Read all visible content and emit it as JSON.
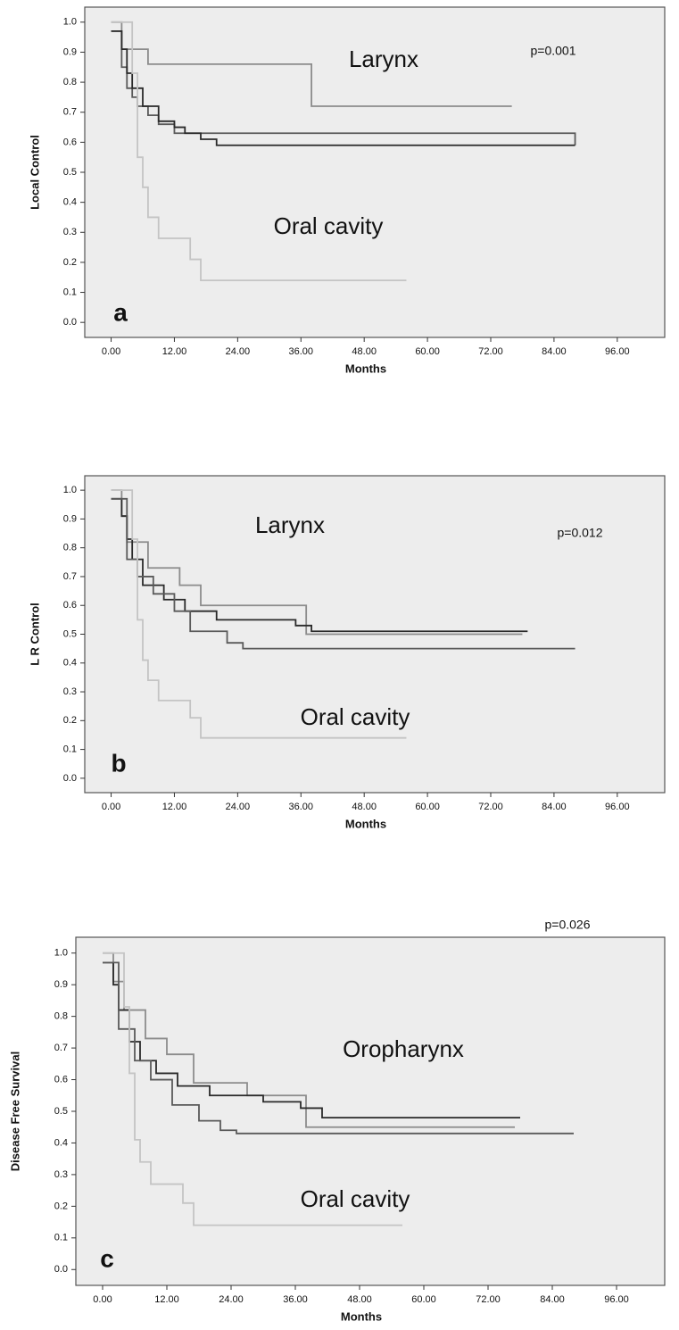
{
  "chart_data": [
    {
      "type": "step",
      "ylabel": "Local Control",
      "xlabel": "Months",
      "panel": "a",
      "pvalue": "p=0.001",
      "annotations": [
        "Larynx",
        "Oral cavity"
      ],
      "xlim": [
        -5,
        105
      ],
      "ylim": [
        -0.05,
        1.05
      ],
      "xticks": [
        {
          "value": 0,
          "label": "0.00"
        },
        {
          "value": 12,
          "label": "12.00"
        },
        {
          "value": 24,
          "label": "24.00"
        },
        {
          "value": 36,
          "label": "36.00"
        },
        {
          "value": 48,
          "label": "48.00"
        },
        {
          "value": 60,
          "label": "60.00"
        },
        {
          "value": 72,
          "label": "72.00"
        },
        {
          "value": 84,
          "label": "84.00"
        },
        {
          "value": 96,
          "label": "96.00"
        }
      ],
      "yticks": [
        {
          "value": 0,
          "label": "0.0"
        },
        {
          "value": 0.1,
          "label": "0.1"
        },
        {
          "value": 0.2,
          "label": "0.2"
        },
        {
          "value": 0.3,
          "label": "0.3"
        },
        {
          "value": 0.4,
          "label": "0.4"
        },
        {
          "value": 0.5,
          "label": "0.5"
        },
        {
          "value": 0.6,
          "label": "0.6"
        },
        {
          "value": 0.7,
          "label": "0.7"
        },
        {
          "value": 0.8,
          "label": "0.8"
        },
        {
          "value": 0.9,
          "label": "0.9"
        },
        {
          "value": 1,
          "label": "1.0"
        }
      ],
      "series": [
        {
          "color": "#8c8c8c",
          "x": [
            0,
            2,
            7,
            38,
            76
          ],
          "values": [
            1,
            0.91,
            0.86,
            0.72,
            0.72
          ]
        },
        {
          "color": "#5a5a5a",
          "x": [
            0,
            2,
            3,
            4,
            5,
            7,
            9,
            12,
            88
          ],
          "values": [
            0.97,
            0.85,
            0.78,
            0.75,
            0.72,
            0.69,
            0.66,
            0.63,
            0.59
          ]
        },
        {
          "color": "#2a2a2a",
          "x": [
            0,
            2,
            3,
            4,
            6,
            9,
            12,
            14,
            17,
            20,
            88
          ],
          "values": [
            0.97,
            0.91,
            0.83,
            0.78,
            0.72,
            0.67,
            0.65,
            0.63,
            0.61,
            0.59,
            0.59
          ]
        },
        {
          "color": "#c4c4c4",
          "x": [
            0,
            4,
            5,
            6,
            7,
            9,
            15,
            17,
            56
          ],
          "values": [
            1,
            0.83,
            0.55,
            0.45,
            0.35,
            0.28,
            0.21,
            0.14,
            0.14
          ]
        }
      ]
    },
    {
      "type": "step",
      "ylabel": "L R Control",
      "xlabel": "Months",
      "panel": "b",
      "pvalue": "p=0.012",
      "annotations": [
        "Larynx",
        "Oral cavity"
      ],
      "xlim": [
        -5,
        105
      ],
      "ylim": [
        -0.05,
        1.05
      ],
      "xticks": [
        {
          "value": 0,
          "label": "0.00"
        },
        {
          "value": 12,
          "label": "12.00"
        },
        {
          "value": 24,
          "label": "24.00"
        },
        {
          "value": 36,
          "label": "36.00"
        },
        {
          "value": 48,
          "label": "48.00"
        },
        {
          "value": 60,
          "label": "60.00"
        },
        {
          "value": 72,
          "label": "72.00"
        },
        {
          "value": 84,
          "label": "84.00"
        },
        {
          "value": 96,
          "label": "96.00"
        }
      ],
      "yticks": [
        {
          "value": 0,
          "label": "0.0"
        },
        {
          "value": 0.1,
          "label": "0.1"
        },
        {
          "value": 0.2,
          "label": "0.2"
        },
        {
          "value": 0.3,
          "label": "0.3"
        },
        {
          "value": 0.4,
          "label": "0.4"
        },
        {
          "value": 0.5,
          "label": "0.5"
        },
        {
          "value": 0.6,
          "label": "0.6"
        },
        {
          "value": 0.7,
          "label": "0.7"
        },
        {
          "value": 0.8,
          "label": "0.8"
        },
        {
          "value": 0.9,
          "label": "0.9"
        },
        {
          "value": 1,
          "label": "1.0"
        }
      ],
      "series": [
        {
          "color": "#8c8c8c",
          "x": [
            0,
            2,
            3,
            7,
            13,
            17,
            27,
            37,
            78
          ],
          "values": [
            1,
            0.91,
            0.82,
            0.73,
            0.67,
            0.6,
            0.6,
            0.5,
            0.5
          ]
        },
        {
          "color": "#2a2a2a",
          "x": [
            0,
            2,
            3,
            4,
            6,
            10,
            14,
            20,
            35,
            38,
            79
          ],
          "values": [
            0.97,
            0.91,
            0.83,
            0.76,
            0.67,
            0.62,
            0.58,
            0.55,
            0.53,
            0.51,
            0.51
          ]
        },
        {
          "color": "#5a5a5a",
          "x": [
            0,
            3,
            5,
            8,
            12,
            15,
            22,
            25,
            88
          ],
          "values": [
            0.97,
            0.76,
            0.7,
            0.64,
            0.58,
            0.51,
            0.47,
            0.45,
            0.45
          ]
        },
        {
          "color": "#c4c4c4",
          "x": [
            0,
            4,
            5,
            6,
            7,
            9,
            15,
            17,
            56
          ],
          "values": [
            1,
            0.83,
            0.55,
            0.41,
            0.34,
            0.27,
            0.21,
            0.14,
            0.14
          ]
        }
      ]
    },
    {
      "type": "step",
      "ylabel": "Disease Free Survival",
      "xlabel": "Months",
      "panel": "c",
      "pvalue": "p=0.026",
      "annotations": [
        "Oropharynx",
        "Oral cavity"
      ],
      "xlim": [
        -5,
        105
      ],
      "ylim": [
        -0.05,
        1.05
      ],
      "xticks": [
        {
          "value": 0,
          "label": "0.00"
        },
        {
          "value": 12,
          "label": "12.00"
        },
        {
          "value": 24,
          "label": "24.00"
        },
        {
          "value": 36,
          "label": "36.00"
        },
        {
          "value": 48,
          "label": "48.00"
        },
        {
          "value": 60,
          "label": "60.00"
        },
        {
          "value": 72,
          "label": "72.00"
        },
        {
          "value": 84,
          "label": "84.00"
        },
        {
          "value": 96,
          "label": "96.00"
        }
      ],
      "yticks": [
        {
          "value": 0,
          "label": "0.0"
        },
        {
          "value": 0.1,
          "label": "0.1"
        },
        {
          "value": 0.2,
          "label": "0.2"
        },
        {
          "value": 0.3,
          "label": "0.3"
        },
        {
          "value": 0.4,
          "label": "0.4"
        },
        {
          "value": 0.5,
          "label": "0.5"
        },
        {
          "value": 0.6,
          "label": "0.6"
        },
        {
          "value": 0.7,
          "label": "0.7"
        },
        {
          "value": 0.8,
          "label": "0.8"
        },
        {
          "value": 0.9,
          "label": "0.9"
        },
        {
          "value": 1,
          "label": "1.0"
        }
      ],
      "series": [
        {
          "color": "#8c8c8c",
          "x": [
            0,
            2,
            4,
            8,
            12,
            17,
            27,
            38,
            77
          ],
          "values": [
            1,
            0.91,
            0.82,
            0.73,
            0.68,
            0.59,
            0.55,
            0.45,
            0.45
          ]
        },
        {
          "color": "#2a2a2a",
          "x": [
            0,
            2,
            3,
            5,
            7,
            10,
            14,
            20,
            30,
            37,
            41,
            78
          ],
          "values": [
            0.97,
            0.9,
            0.82,
            0.72,
            0.66,
            0.62,
            0.58,
            0.55,
            0.53,
            0.51,
            0.48,
            0.48
          ]
        },
        {
          "color": "#5a5a5a",
          "x": [
            0,
            3,
            6,
            9,
            13,
            18,
            22,
            25,
            88
          ],
          "values": [
            0.97,
            0.76,
            0.66,
            0.6,
            0.52,
            0.47,
            0.44,
            0.43,
            0.43
          ]
        },
        {
          "color": "#c4c4c4",
          "x": [
            0,
            4,
            5,
            6,
            7,
            9,
            15,
            17,
            56
          ],
          "values": [
            1,
            0.83,
            0.62,
            0.41,
            0.34,
            0.27,
            0.21,
            0.14,
            0.14
          ]
        }
      ]
    }
  ]
}
